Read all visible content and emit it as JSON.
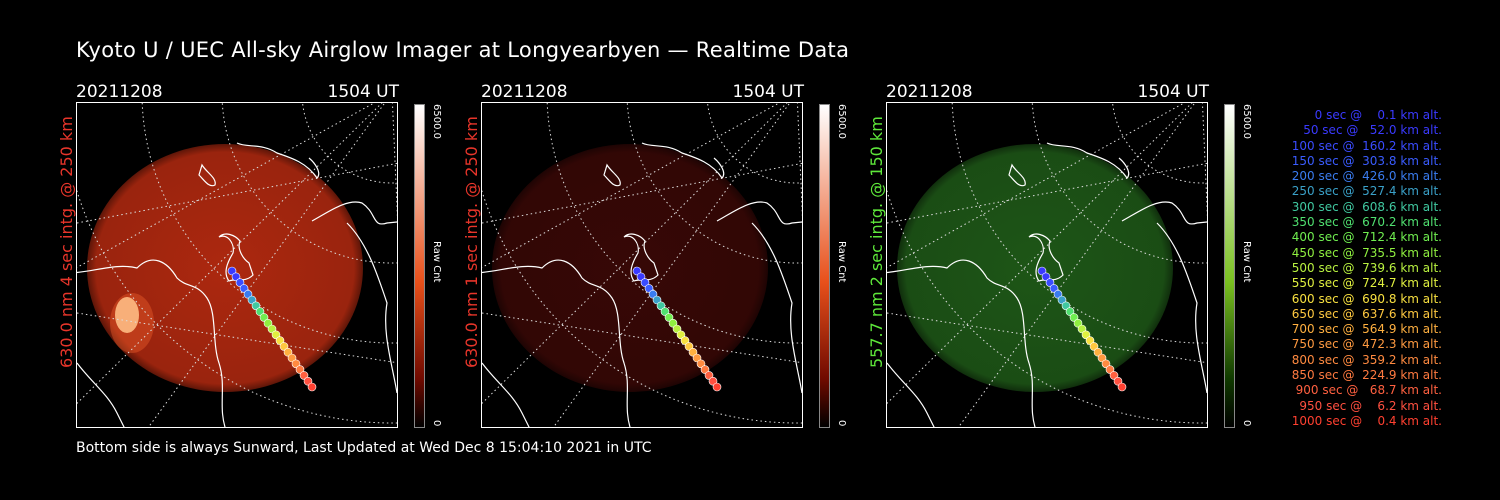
{
  "title": "Kyoto U / UEC All-sky Airglow Imager at Longyearbyen — Realtime Data",
  "panels": [
    {
      "date": "20211208",
      "time": "1504 UT",
      "side_label": "630.0 nm 4 sec intg. @ 250 km",
      "label_color": "#e8352a",
      "glow_color": "#b52a10",
      "cbar_max": "6500.0",
      "cbar_unit": "Raw Cnt",
      "cbar_min": "0",
      "cbar_top": "#ffffff",
      "cbar_mid": "#e8501a",
      "cbar_low": "#700a00"
    },
    {
      "date": "20211208",
      "time": "1504 UT",
      "side_label": "630.0 nm 1 sec intg. @ 250 km",
      "label_color": "#e8352a",
      "glow_color": "#3a0806",
      "cbar_max": "6500.0",
      "cbar_unit": "Raw Cnt",
      "cbar_min": "0",
      "cbar_top": "#ffffff",
      "cbar_mid": "#e8501a",
      "cbar_low": "#700a00"
    },
    {
      "date": "20211208",
      "time": "1504 UT",
      "side_label": "557.7 nm 2 sec intg. @ 150 km",
      "label_color": "#5ee83a",
      "glow_color": "#1f5a18",
      "cbar_max": "6500.0",
      "cbar_unit": "Raw Cnt",
      "cbar_min": "0",
      "cbar_top": "#ffffff",
      "cbar_mid": "#7ac020",
      "cbar_low": "#103a00"
    }
  ],
  "footer": "Bottom side is always Sunward, Last Updated at Wed Dec  8 15:04:10 2021 in UTC",
  "legend": [
    {
      "text": "   0 sec @    0.1 km alt.",
      "color": "#3a3aff"
    },
    {
      "text": "  50 sec @   52.0 km alt.",
      "color": "#3a3aff"
    },
    {
      "text": " 100 sec @  160.2 km alt.",
      "color": "#3a4cff"
    },
    {
      "text": " 150 sec @  303.8 km alt.",
      "color": "#3a5cff"
    },
    {
      "text": " 200 sec @  426.0 km alt.",
      "color": "#3a7cf0"
    },
    {
      "text": " 250 sec @  527.4 km alt.",
      "color": "#3aa0c8"
    },
    {
      "text": " 300 sec @  608.6 km alt.",
      "color": "#40c8a0"
    },
    {
      "text": " 350 sec @  670.2 km alt.",
      "color": "#50e070"
    },
    {
      "text": " 400 sec @  712.4 km alt.",
      "color": "#70ee50"
    },
    {
      "text": " 450 sec @  735.5 km alt.",
      "color": "#90f040"
    },
    {
      "text": " 500 sec @  739.6 km alt.",
      "color": "#b8f040"
    },
    {
      "text": " 550 sec @  724.7 km alt.",
      "color": "#e0f040"
    },
    {
      "text": " 600 sec @  690.8 km alt.",
      "color": "#f8e040"
    },
    {
      "text": " 650 sec @  637.6 km alt.",
      "color": "#ffc840"
    },
    {
      "text": " 700 sec @  564.9 km alt.",
      "color": "#ffb040"
    },
    {
      "text": " 750 sec @  472.3 km alt.",
      "color": "#ff9a40"
    },
    {
      "text": " 800 sec @  359.2 km alt.",
      "color": "#ff8a40"
    },
    {
      "text": " 850 sec @  224.9 km alt.",
      "color": "#ff7a40"
    },
    {
      "text": " 900 sec @   68.7 km alt.",
      "color": "#ff6040"
    },
    {
      "text": " 950 sec @    6.2 km alt.",
      "color": "#ff5040"
    },
    {
      "text": "1000 sec @    0.4 km alt.",
      "color": "#ff4030"
    }
  ]
}
